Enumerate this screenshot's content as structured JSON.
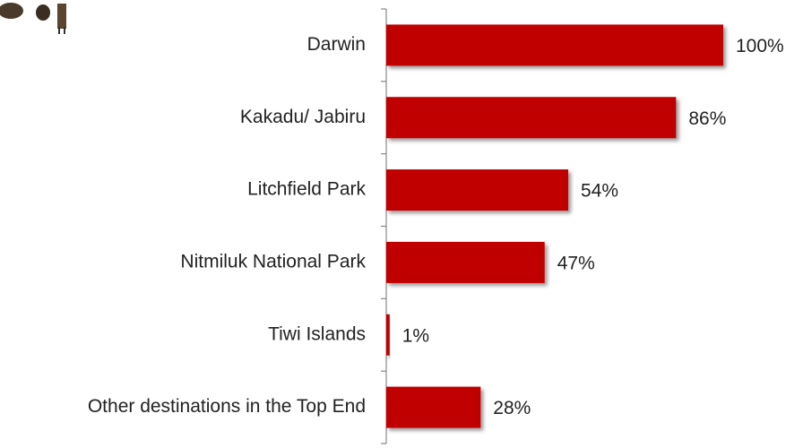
{
  "chart_data": {
    "type": "bar",
    "orientation": "horizontal",
    "categories": [
      "Darwin",
      "Kakadu/ Jabiru",
      "Litchfield Park",
      "Nitmiluk National Park",
      "Tiwi Islands",
      "Other destinations in the Top End"
    ],
    "values": [
      100,
      86,
      54,
      47,
      1,
      28
    ],
    "value_labels": [
      "100%",
      "86%",
      "54%",
      "47%",
      "1%",
      "28%"
    ],
    "color": "#c00000",
    "xlim": [
      0,
      100
    ]
  }
}
